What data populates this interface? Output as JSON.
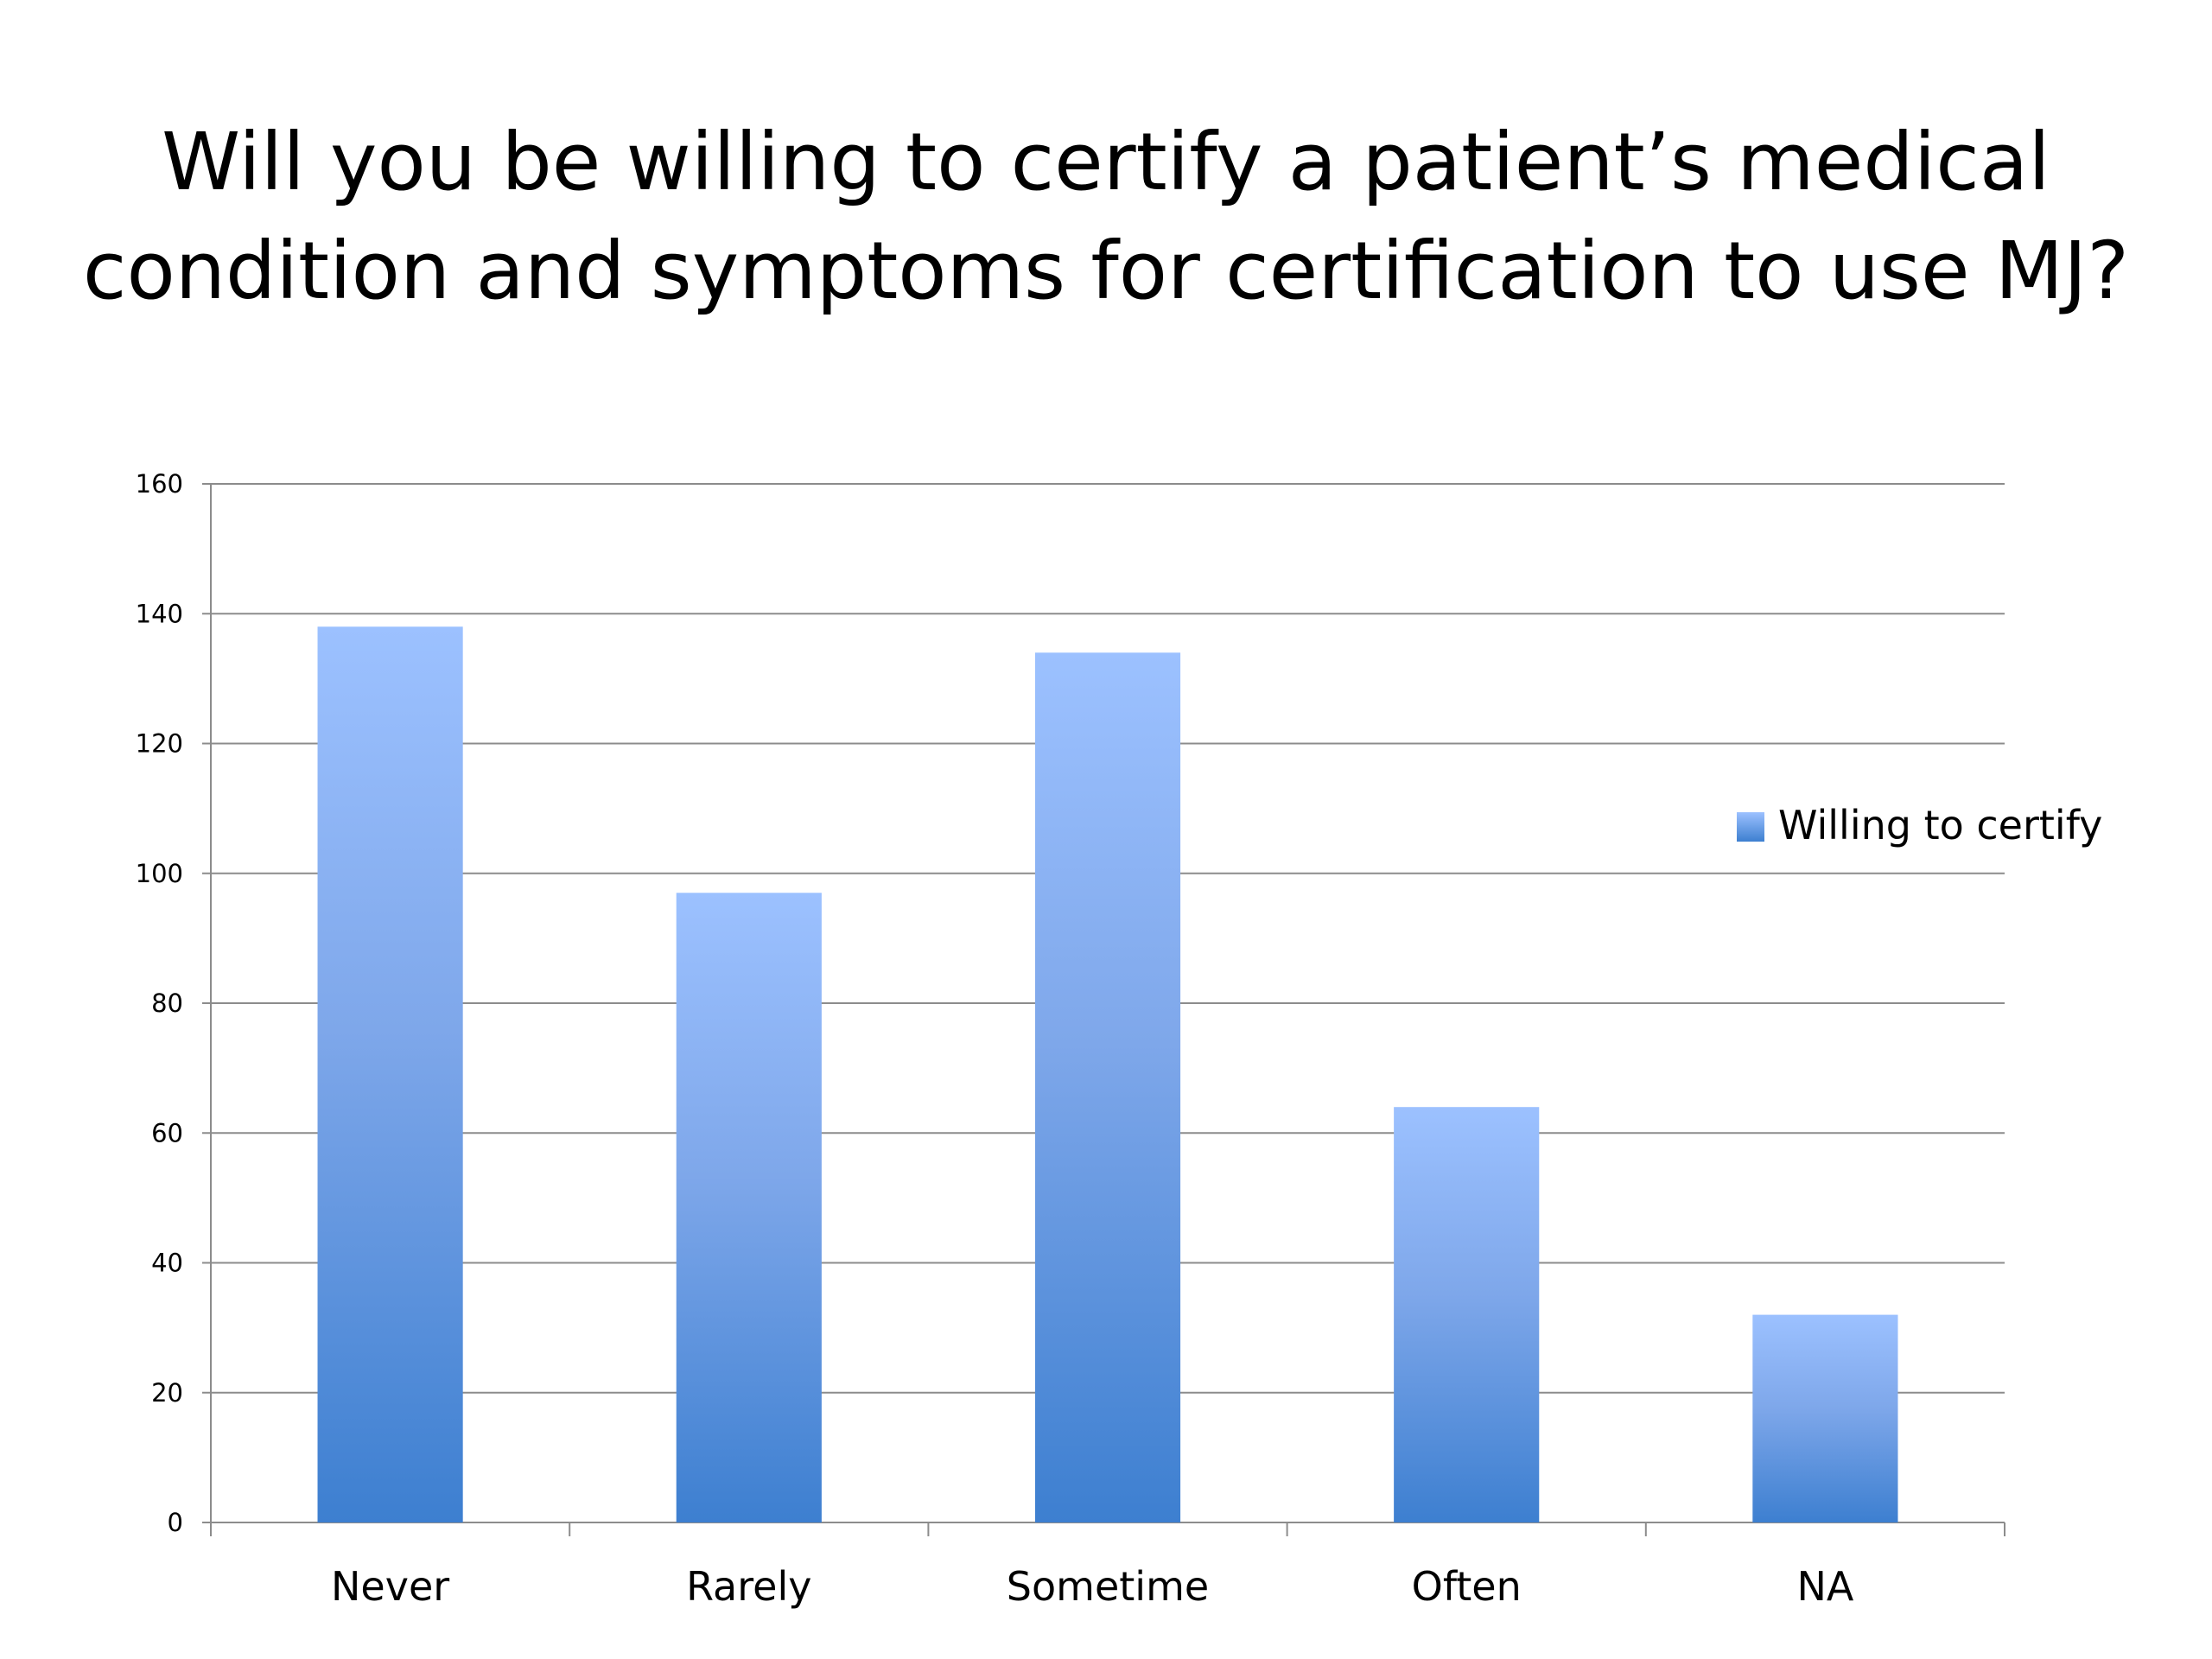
{
  "slide": {
    "title_line1": "Will you be willing to certify a patient’s medical",
    "title_line2": "condition and symptoms for certification to use MJ?"
  },
  "chart_data": {
    "type": "bar",
    "title": "Will you be willing to certify a patient’s medical condition and symptoms for certification to use MJ?",
    "categories": [
      "Never",
      "Rarely",
      "Sometime",
      "Often",
      "NA"
    ],
    "series": [
      {
        "name": "Willing to certify",
        "values": [
          138,
          97,
          134,
          64,
          32
        ]
      }
    ],
    "ylim": [
      0,
      160
    ],
    "yticks": [
      0,
      20,
      40,
      60,
      80,
      100,
      120,
      140,
      160
    ],
    "xlabel": "",
    "ylabel": "",
    "grid": true,
    "legend_position": "right",
    "colors": {
      "bar_top": "#9cc1ff",
      "bar_bottom": "#3d7fd0",
      "grid": "#8c8c8c",
      "axis": "#8c8c8c"
    }
  }
}
